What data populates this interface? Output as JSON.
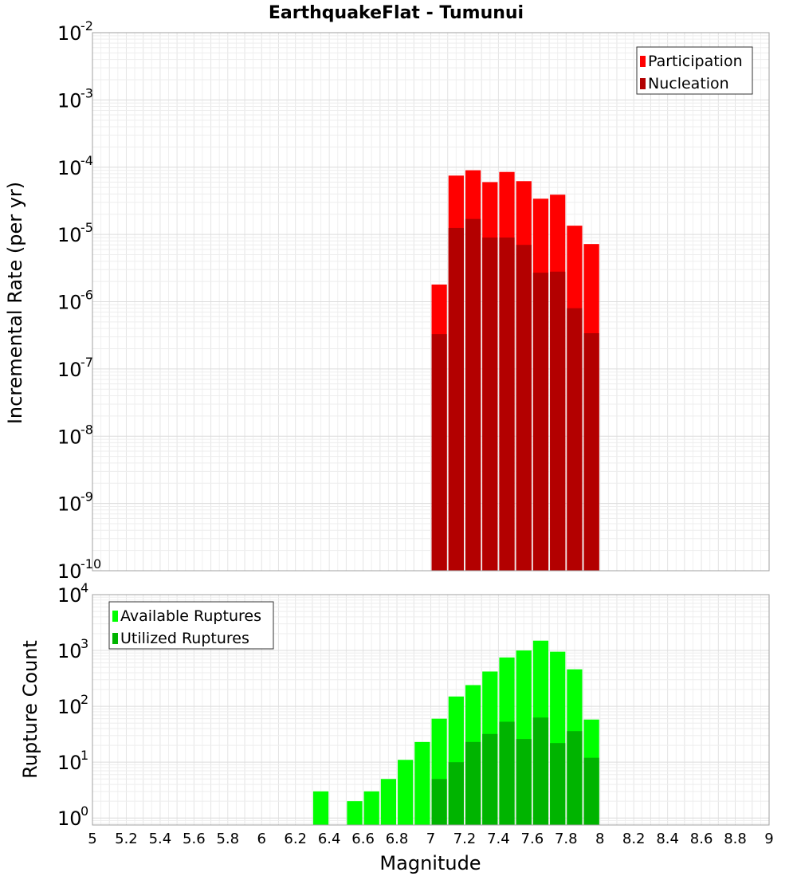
{
  "chart_data": [
    {
      "type": "bar",
      "title": "EarthquakeFlat - Tumunui",
      "xlabel": "Magnitude",
      "ylabel": "Incremental Rate (per yr)",
      "yscale": "log",
      "ylim": [
        1e-10,
        0.01
      ],
      "xlim": [
        5,
        9
      ],
      "bar_width": 0.1,
      "grid": true,
      "legend_position": "top-right",
      "y_ticks": [
        {
          "base": "10",
          "exp": "-10",
          "value": 1e-10
        },
        {
          "base": "10",
          "exp": "-9",
          "value": 1e-09
        },
        {
          "base": "10",
          "exp": "-8",
          "value": 1e-08
        },
        {
          "base": "10",
          "exp": "-7",
          "value": 1e-07
        },
        {
          "base": "10",
          "exp": "-6",
          "value": 1e-06
        },
        {
          "base": "10",
          "exp": "-5",
          "value": 1e-05
        },
        {
          "base": "10",
          "exp": "-4",
          "value": 0.0001
        },
        {
          "base": "10",
          "exp": "-3",
          "value": 0.001
        },
        {
          "base": "10",
          "exp": "-2",
          "value": 0.01
        }
      ],
      "x": [
        7.05,
        7.15,
        7.25,
        7.35,
        7.45,
        7.55,
        7.65,
        7.75,
        7.85,
        7.95
      ],
      "series": [
        {
          "name": "Participation",
          "color": "#ff0000",
          "values": [
            1.8e-06,
            7.5e-05,
            9e-05,
            6e-05,
            8.5e-05,
            6.2e-05,
            3.4e-05,
            3.9e-05,
            1.35e-05,
            7.2e-06
          ]
        },
        {
          "name": "Nucleation",
          "color": "#b30000",
          "values": [
            3.3e-07,
            1.25e-05,
            1.7e-05,
            9e-06,
            9e-06,
            7e-06,
            2.7e-06,
            2.8e-06,
            8e-07,
            3.4e-07
          ]
        }
      ]
    },
    {
      "type": "bar",
      "title": "",
      "xlabel": "Magnitude",
      "ylabel": "Rupture Count",
      "yscale": "log",
      "ylim": [
        0.75,
        10000
      ],
      "xlim": [
        5,
        9
      ],
      "bar_width": 0.1,
      "grid": true,
      "legend_position": "top-left",
      "y_ticks": [
        {
          "base": "10",
          "exp": "0",
          "value": 1
        },
        {
          "base": "10",
          "exp": "1",
          "value": 10
        },
        {
          "base": "10",
          "exp": "2",
          "value": 100
        },
        {
          "base": "10",
          "exp": "3",
          "value": 1000
        },
        {
          "base": "10",
          "exp": "4",
          "value": 10000
        }
      ],
      "x_ticks": [
        "5",
        "5.2",
        "5.4",
        "5.6",
        "5.8",
        "6",
        "6.2",
        "6.4",
        "6.6",
        "6.8",
        "7",
        "7.2",
        "7.4",
        "7.6",
        "7.8",
        "8",
        "8.2",
        "8.4",
        "8.6",
        "8.8",
        "9"
      ],
      "x": [
        6.35,
        6.55,
        6.65,
        6.75,
        6.85,
        6.95,
        7.05,
        7.15,
        7.25,
        7.35,
        7.45,
        7.55,
        7.65,
        7.75,
        7.85,
        7.95
      ],
      "series": [
        {
          "name": "Available Ruptures",
          "color": "#00ff00",
          "values": [
            3,
            2,
            3,
            5,
            11,
            23,
            60,
            150,
            240,
            420,
            750,
            1000,
            1500,
            950,
            460,
            58
          ]
        },
        {
          "name": "Utilized Ruptures",
          "color": "#00b400",
          "values": [
            null,
            null,
            null,
            null,
            null,
            null,
            5,
            10,
            23,
            32,
            53,
            26,
            63,
            22,
            36,
            12
          ]
        }
      ]
    }
  ]
}
